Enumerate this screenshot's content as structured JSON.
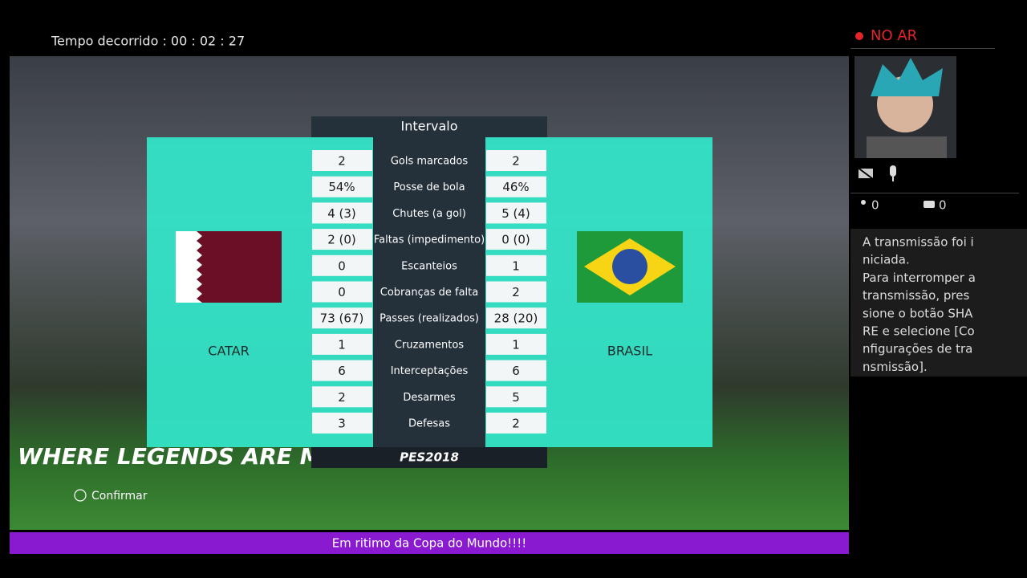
{
  "header": {
    "elapsed": "Tempo decorrido : 00 : 02 : 27"
  },
  "sidebar": {
    "live": "NO AR",
    "viewers": "0",
    "comments": "0",
    "message_lines": [
      "A transmissão foi i",
      "niciada.",
      "Para interromper a",
      "transmissão, pres",
      "sione o botão SHA",
      "RE e selecione [Co",
      "nfigurações de tra",
      "nsmissão]."
    ]
  },
  "game": {
    "title": "Intervalo",
    "banner": "WHERE LEGENDS ARE MADE",
    "logo": "PES2018",
    "confirm": "Confirmar",
    "teams": {
      "left": "CATAR",
      "right": "BRASIL"
    },
    "table": {
      "rows": [
        {
          "left": "2",
          "label": "Gols marcados",
          "right": "2"
        },
        {
          "left": "54%",
          "label": "Posse de bola",
          "right": "46%"
        },
        {
          "left": "4 (3)",
          "label": "Chutes (a gol)",
          "right": "5 (4)"
        },
        {
          "left": "2 (0)",
          "label": "Faltas (impedimento)",
          "right": "0 (0)"
        },
        {
          "left": "0",
          "label": "Escanteios",
          "right": "1"
        },
        {
          "left": "0",
          "label": "Cobranças de falta",
          "right": "2"
        },
        {
          "left": "73 (67)",
          "label": "Passes (realizados)",
          "right": "28 (20)"
        },
        {
          "left": "1",
          "label": "Cruzamentos",
          "right": "1"
        },
        {
          "left": "6",
          "label": "Interceptações",
          "right": "6"
        },
        {
          "left": "2",
          "label": "Desarmes",
          "right": "5"
        },
        {
          "left": "3",
          "label": "Defesas",
          "right": "2"
        }
      ]
    }
  },
  "footer": {
    "caption": "Em ritimo da Copa do Mundo!!!!"
  }
}
